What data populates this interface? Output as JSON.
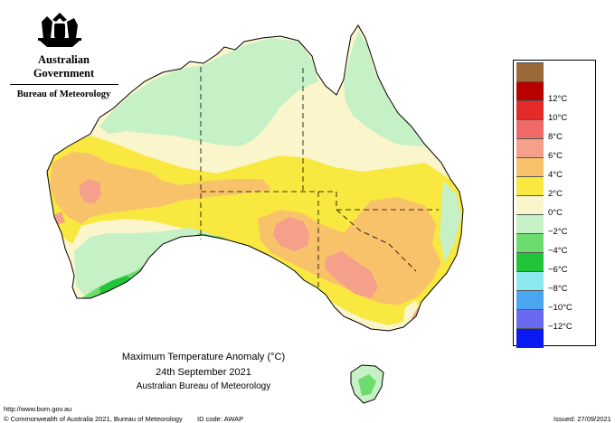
{
  "logo": {
    "government": "Australian Government",
    "bureau": "Bureau of Meteorology"
  },
  "title": {
    "line1": "Maximum Temperature Anomaly (°C)",
    "line2": "24th September 2021",
    "line3": "Australian Bureau of Meteorology"
  },
  "footer": {
    "url": "http://www.bom.gov.au",
    "copyright": "© Commonwealth of Australia 2021, Bureau of Meteorology",
    "id_code": "ID code: AWAP",
    "issued": "Issued: 27/09/2021"
  },
  "legend": [
    {
      "label": "",
      "color": "#9a6a3a"
    },
    {
      "label": "12°C",
      "color": "#b80000"
    },
    {
      "label": "10°C",
      "color": "#e52a2a"
    },
    {
      "label": "8°C",
      "color": "#f06a6a"
    },
    {
      "label": "6°C",
      "color": "#f4a08a"
    },
    {
      "label": "4°C",
      "color": "#f8c26a"
    },
    {
      "label": "2°C",
      "color": "#f8e840"
    },
    {
      "label": "0°C",
      "color": "#fbf5cc"
    },
    {
      "label": "−2°C",
      "color": "#c6f0c6"
    },
    {
      "label": "−4°C",
      "color": "#6ddc6d"
    },
    {
      "label": "−6°C",
      "color": "#22c43a"
    },
    {
      "label": "−8°C",
      "color": "#8ee8f0"
    },
    {
      "label": "−10°C",
      "color": "#4aa6f0"
    },
    {
      "label": "−12°C",
      "color": "#6a6af0"
    },
    {
      "label": "",
      "color": "#0a1af0"
    }
  ]
}
